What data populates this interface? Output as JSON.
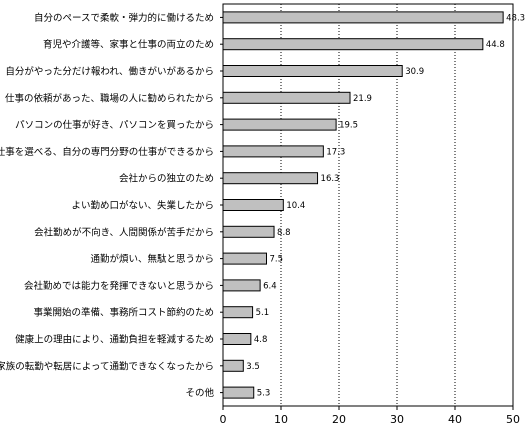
{
  "chart_data": {
    "type": "bar",
    "orientation": "horizontal",
    "categories": [
      "自分のペースで柔軟・弾力的に働けるため",
      "育児や介護等、家事と仕事の両立のため",
      "自分がやった分だけ報われ、働きがいがあるから",
      "仕事の依頼があった、職場の人に勧められたから",
      "パソコンの仕事が好き、パソコンを買ったから",
      "仕事を選べる、自分の専門分野の仕事ができるから",
      "会社からの独立のため",
      "よい勤め口がない、失業したから",
      "会社勤めが不向き、人間関係が苦手だから",
      "通勤が煩い、無駄と思うから",
      "会社勤めでは能力を発揮できないと思うから",
      "事業開始の準備、事務所コスト節約のため",
      "健康上の理由により、通勤負担を軽減するため",
      "家族の転勤や転居によって通勤できなくなったから",
      "その他"
    ],
    "values": [
      48.3,
      44.8,
      30.9,
      21.9,
      19.5,
      17.3,
      16.3,
      10.4,
      8.8,
      7.5,
      6.4,
      5.1,
      4.8,
      3.5,
      5.3
    ],
    "value_labels": [
      "48.3",
      "44.8",
      "30.9",
      "21.9",
      "19.5",
      "17.3",
      "16.3",
      "10.4",
      "8.8",
      "7.5",
      "6.4",
      "5.1",
      "4.8",
      "3.5",
      "5.3"
    ],
    "x_ticks": [
      "0",
      "10",
      "20",
      "30",
      "40",
      "50"
    ],
    "xlim": [
      0,
      50
    ],
    "grid": "vertical dotted",
    "bar_color": "#c0c0c0",
    "bar_border_color": "#000000",
    "title": "",
    "xlabel": "",
    "ylabel": ""
  }
}
